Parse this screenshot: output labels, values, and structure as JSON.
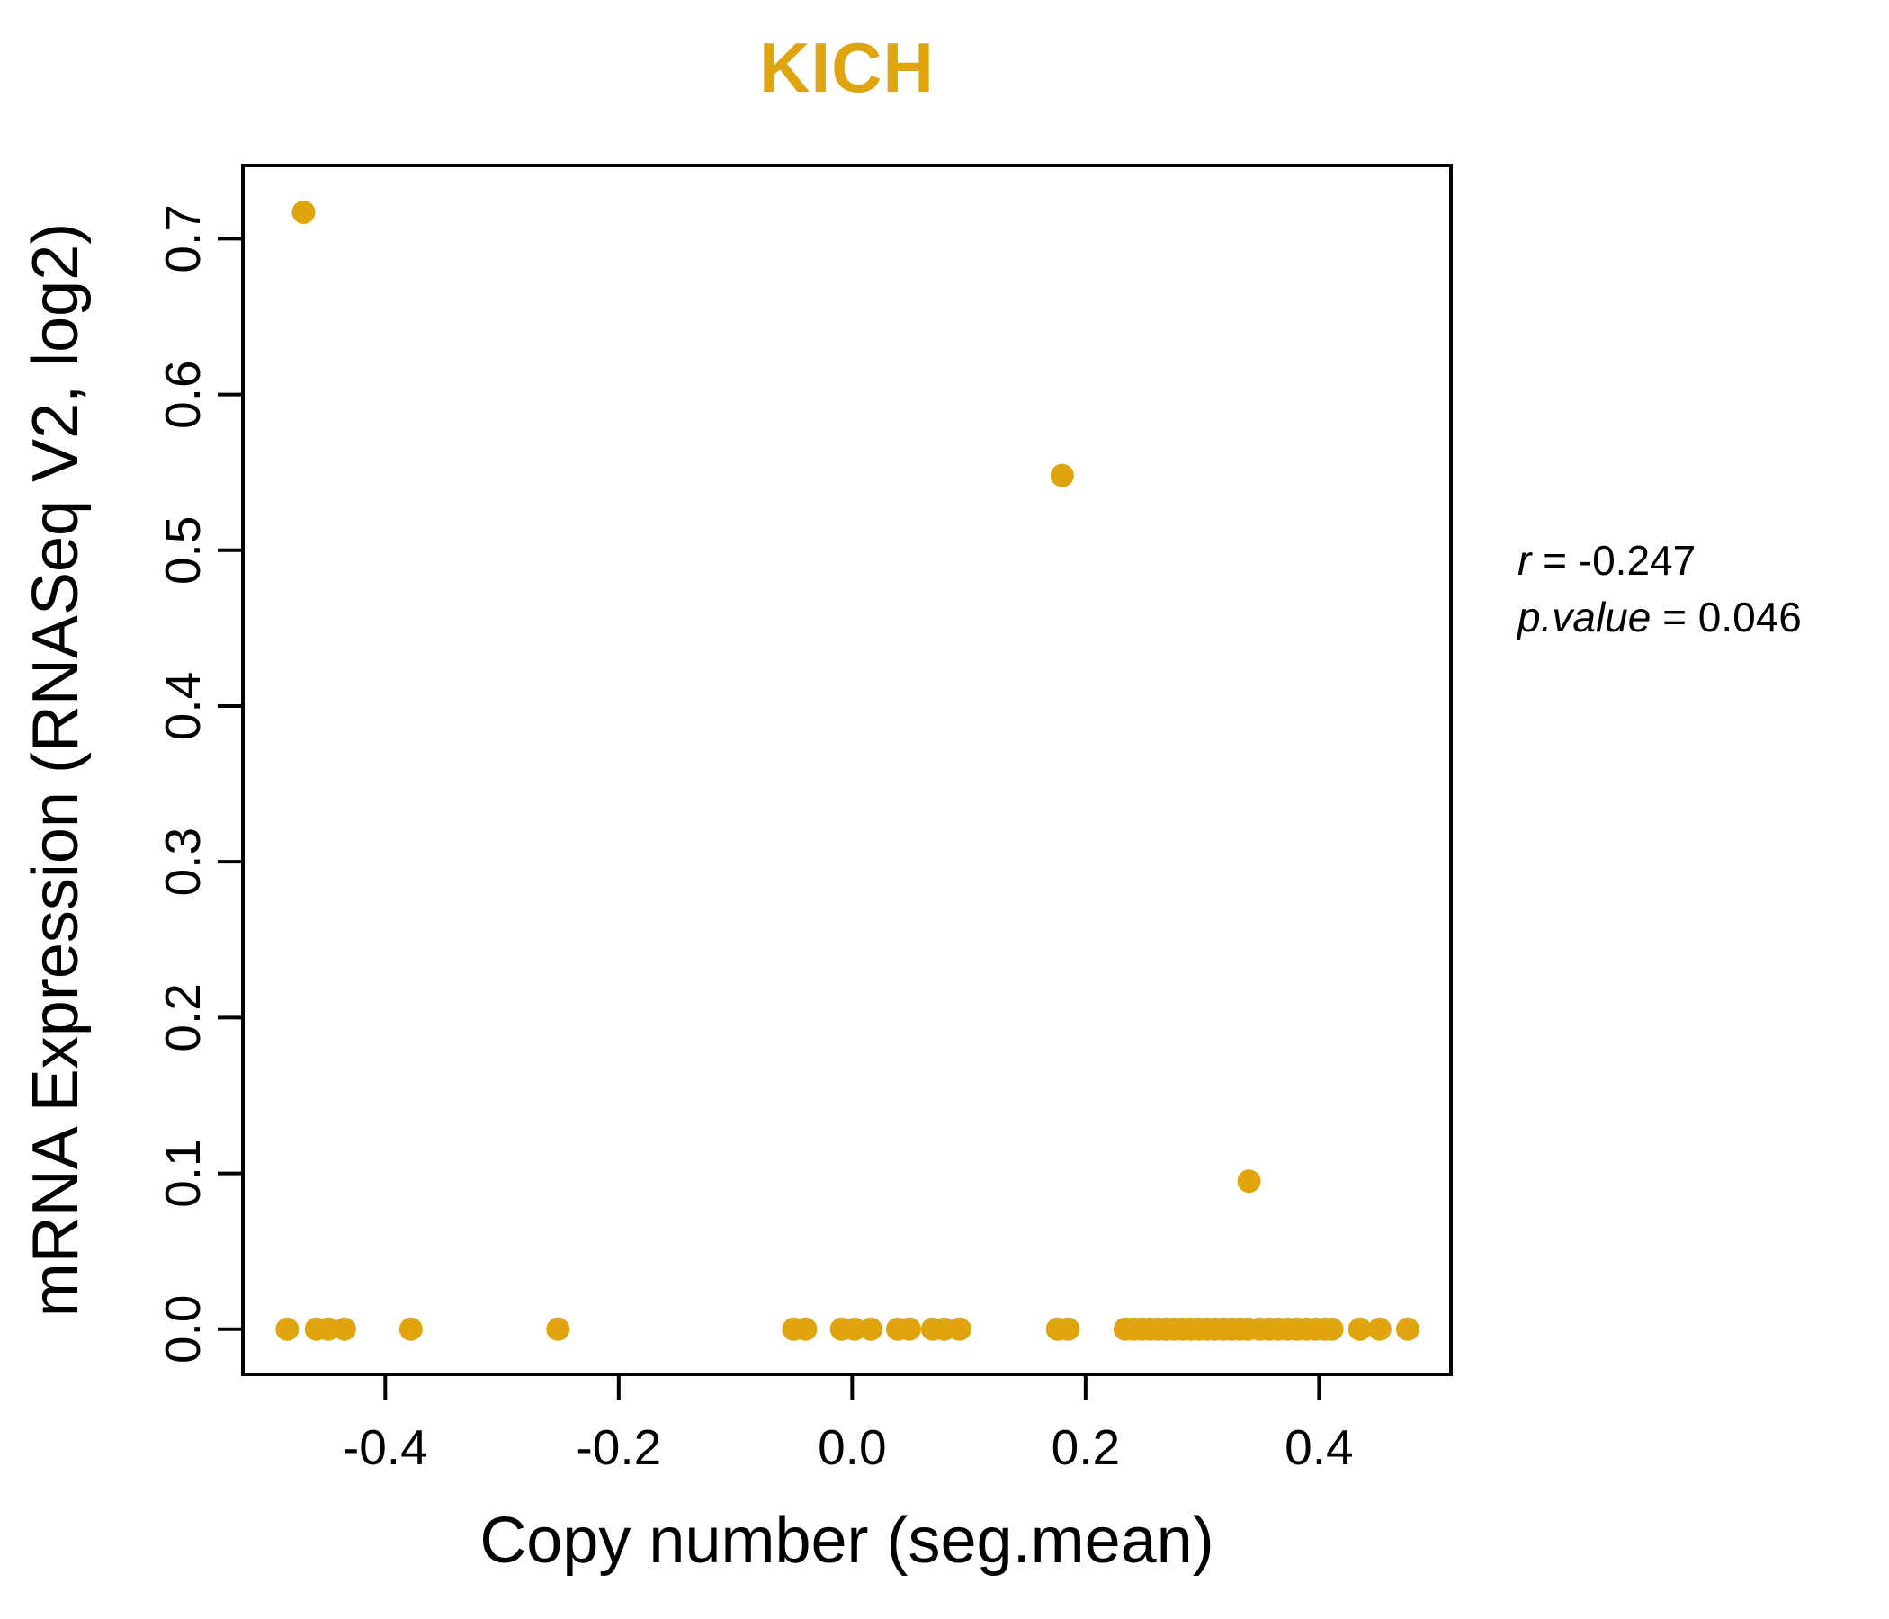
{
  "chart_data": {
    "type": "scatter",
    "title": "KICH",
    "title_color": "#E0A40E",
    "xlabel": "Copy number (seg.mean)",
    "ylabel": "mRNA Expression (RNASeq V2, log2)",
    "xlim": [
      -0.522,
      0.513
    ],
    "ylim": [
      -0.029,
      0.747
    ],
    "xticks": [
      -0.4,
      -0.2,
      0.0,
      0.2,
      0.4
    ],
    "xtick_labels": [
      "-0.4",
      "-0.2",
      "0.0",
      "0.2",
      "0.4"
    ],
    "yticks": [
      0.0,
      0.1,
      0.2,
      0.3,
      0.4,
      0.5,
      0.6,
      0.7
    ],
    "ytick_labels": [
      "0.0",
      "0.1",
      "0.2",
      "0.3",
      "0.4",
      "0.5",
      "0.6",
      "0.7"
    ],
    "grid": false,
    "legend": null,
    "point_color": "#E0A40E",
    "point_radius": 13,
    "axis_color": "#000000",
    "points": [
      [
        -0.47,
        0.717
      ],
      [
        0.18,
        0.548
      ],
      [
        0.34,
        0.095
      ],
      [
        -0.484,
        0.0
      ],
      [
        -0.459,
        0.0
      ],
      [
        -0.449,
        0.0
      ],
      [
        -0.435,
        0.0
      ],
      [
        -0.378,
        0.0
      ],
      [
        -0.252,
        0.0
      ],
      [
        -0.05,
        0.0
      ],
      [
        -0.04,
        0.0
      ],
      [
        -0.009,
        0.0
      ],
      [
        0.002,
        0.0
      ],
      [
        0.016,
        0.0
      ],
      [
        0.039,
        0.0
      ],
      [
        0.049,
        0.0
      ],
      [
        0.069,
        0.0
      ],
      [
        0.079,
        0.0
      ],
      [
        0.092,
        0.0
      ],
      [
        0.176,
        0.0
      ],
      [
        0.185,
        0.0
      ],
      [
        0.234,
        0.0
      ],
      [
        0.241,
        0.0
      ],
      [
        0.248,
        0.0
      ],
      [
        0.255,
        0.0
      ],
      [
        0.262,
        0.0
      ],
      [
        0.269,
        0.0
      ],
      [
        0.276,
        0.0
      ],
      [
        0.283,
        0.0
      ],
      [
        0.29,
        0.0
      ],
      [
        0.297,
        0.0
      ],
      [
        0.304,
        0.0
      ],
      [
        0.311,
        0.0
      ],
      [
        0.318,
        0.0
      ],
      [
        0.325,
        0.0
      ],
      [
        0.332,
        0.0
      ],
      [
        0.339,
        0.0
      ],
      [
        0.349,
        0.0
      ],
      [
        0.357,
        0.0
      ],
      [
        0.365,
        0.0
      ],
      [
        0.373,
        0.0
      ],
      [
        0.381,
        0.0
      ],
      [
        0.389,
        0.0
      ],
      [
        0.397,
        0.0
      ],
      [
        0.405,
        0.0
      ],
      [
        0.411,
        0.0
      ],
      [
        0.435,
        0.0
      ],
      [
        0.452,
        0.0
      ],
      [
        0.476,
        0.0
      ]
    ]
  },
  "annotation": {
    "line1": {
      "var": "r",
      "eq": " = ",
      "value": "-0.247"
    },
    "line2": {
      "var": "p.value",
      "eq": " = ",
      "value": "0.046"
    }
  }
}
